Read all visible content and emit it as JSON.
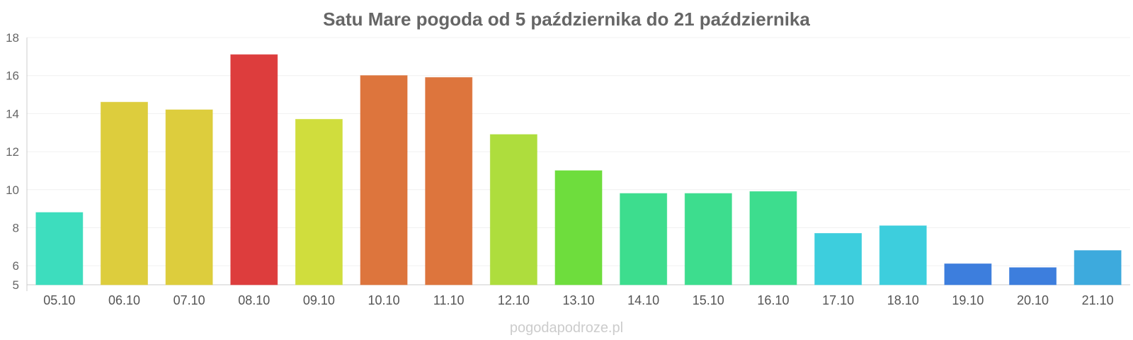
{
  "chart_data": {
    "type": "bar",
    "title": "Satu Mare pogoda od 5 października do 21 października",
    "categories": [
      "05.10",
      "06.10",
      "07.10",
      "08.10",
      "09.10",
      "10.10",
      "11.10",
      "12.10",
      "13.10",
      "14.10",
      "15.10",
      "16.10",
      "17.10",
      "18.10",
      "19.10",
      "20.10",
      "21.10"
    ],
    "values": [
      8.8,
      14.6,
      14.2,
      17.1,
      13.7,
      16.0,
      15.9,
      12.9,
      11.0,
      9.8,
      9.8,
      9.9,
      7.7,
      8.1,
      6.1,
      5.9,
      6.8
    ],
    "colors": [
      "#33dbbb",
      "#dbca33",
      "#dbca33",
      "#db3333",
      "#cddb33",
      "#db6e33",
      "#db6e33",
      "#aadb33",
      "#66db33",
      "#33db88",
      "#33db88",
      "#33db88",
      "#33cbdb",
      "#33cbdb",
      "#3377db",
      "#3377db",
      "#33a5db"
    ],
    "ylim": [
      5,
      18
    ],
    "yticks": [
      5,
      6,
      8,
      10,
      12,
      14,
      16,
      18
    ],
    "grid": true,
    "xlabel": "",
    "ylabel": ""
  },
  "watermark": "pogodapodroze.pl"
}
